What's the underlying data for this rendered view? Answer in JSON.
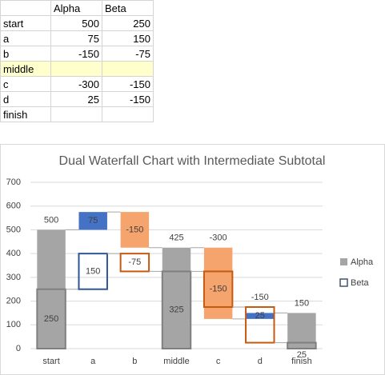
{
  "table": {
    "columns": [
      "Alpha",
      "Beta"
    ],
    "rows": [
      [
        "start",
        500,
        250
      ],
      [
        "a",
        75,
        150
      ],
      [
        "b",
        -150,
        -75
      ],
      [
        "middle",
        null,
        null
      ],
      [
        "c",
        -300,
        -150
      ],
      [
        "d",
        25,
        -150
      ],
      [
        "finish",
        null,
        null
      ]
    ],
    "highlight_row": 3
  },
  "chart_data": {
    "type": "waterfall",
    "title": "Dual Waterfall Chart with Intermediate Subtotal",
    "categories": [
      "start",
      "a",
      "b",
      "middle",
      "c",
      "d",
      "finish"
    ],
    "totals": [
      0,
      3,
      6
    ],
    "series": [
      {
        "name": "Alpha",
        "style": "fill",
        "color": "#a5a5a5",
        "increase_color": "#4472c4",
        "decrease_color": "#f4a46c",
        "values": [
          500,
          75,
          -150,
          425,
          -300,
          25,
          150
        ]
      },
      {
        "name": "Beta",
        "style": "outline",
        "color": "#7f7f7f",
        "increase_color": "#2f5597",
        "decrease_color": "#c55a11",
        "values": [
          250,
          150,
          -75,
          325,
          -150,
          -150,
          25
        ]
      }
    ],
    "ylim": [
      0,
      700
    ],
    "yticks": [
      0,
      100,
      200,
      300,
      400,
      500,
      600,
      700
    ],
    "grid": true,
    "legend": "right"
  }
}
